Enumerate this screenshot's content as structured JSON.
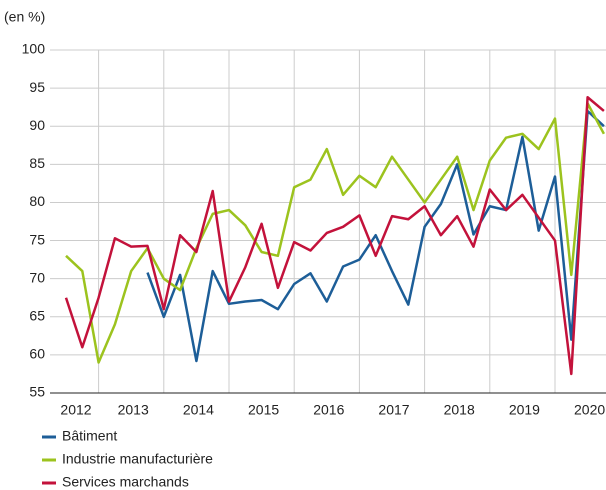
{
  "chart_data": {
    "type": "line",
    "unit_label": "(en %)",
    "categories": [
      "2012",
      null,
      null,
      null,
      "2013",
      null,
      null,
      null,
      "2014",
      null,
      null,
      null,
      "2015",
      null,
      null,
      null,
      "2016",
      null,
      null,
      null,
      "2017",
      null,
      null,
      null,
      "2018",
      null,
      null,
      null,
      "2019",
      null,
      null,
      null,
      "2020",
      null
    ],
    "series": [
      {
        "name": "Bâtiment",
        "color": "#1d5e98",
        "values": [
          null,
          null,
          null,
          null,
          null,
          70.8,
          65,
          70.5,
          59.2,
          71,
          66.7,
          67,
          67.2,
          66,
          69.3,
          70.7,
          67,
          71.6,
          72.5,
          75.7,
          71,
          66.6,
          76.8,
          79.8,
          85,
          75.8,
          79.5,
          79,
          88.6,
          76.3,
          83.4,
          62,
          92,
          90
        ]
      },
      {
        "name": "Industrie manufacturière",
        "color": "#9cc31e",
        "values": [
          73,
          71,
          59,
          64,
          71,
          74,
          70,
          68.5,
          74,
          78.5,
          79,
          77,
          73.5,
          73,
          82,
          83,
          87,
          81,
          83.5,
          82,
          86,
          83,
          80,
          83,
          86,
          79,
          85.5,
          88.5,
          89,
          87,
          91,
          70.5,
          93,
          89
        ]
      },
      {
        "name": "Services marchands",
        "color": "#c3123b",
        "values": [
          67.5,
          61,
          67.5,
          75.3,
          74.2,
          74.3,
          66,
          75.7,
          73.5,
          81.5,
          67,
          71.5,
          77.2,
          68.8,
          74.8,
          73.7,
          76,
          76.8,
          78.3,
          73,
          78.2,
          77.8,
          79.5,
          75.7,
          78.2,
          74.2,
          81.7,
          79,
          81,
          78,
          75,
          57.5,
          93.8,
          92
        ]
      }
    ],
    "ylim": [
      55,
      100
    ],
    "yticks": [
      55,
      60,
      65,
      70,
      75,
      80,
      85,
      90,
      95,
      100
    ],
    "grid": true
  }
}
